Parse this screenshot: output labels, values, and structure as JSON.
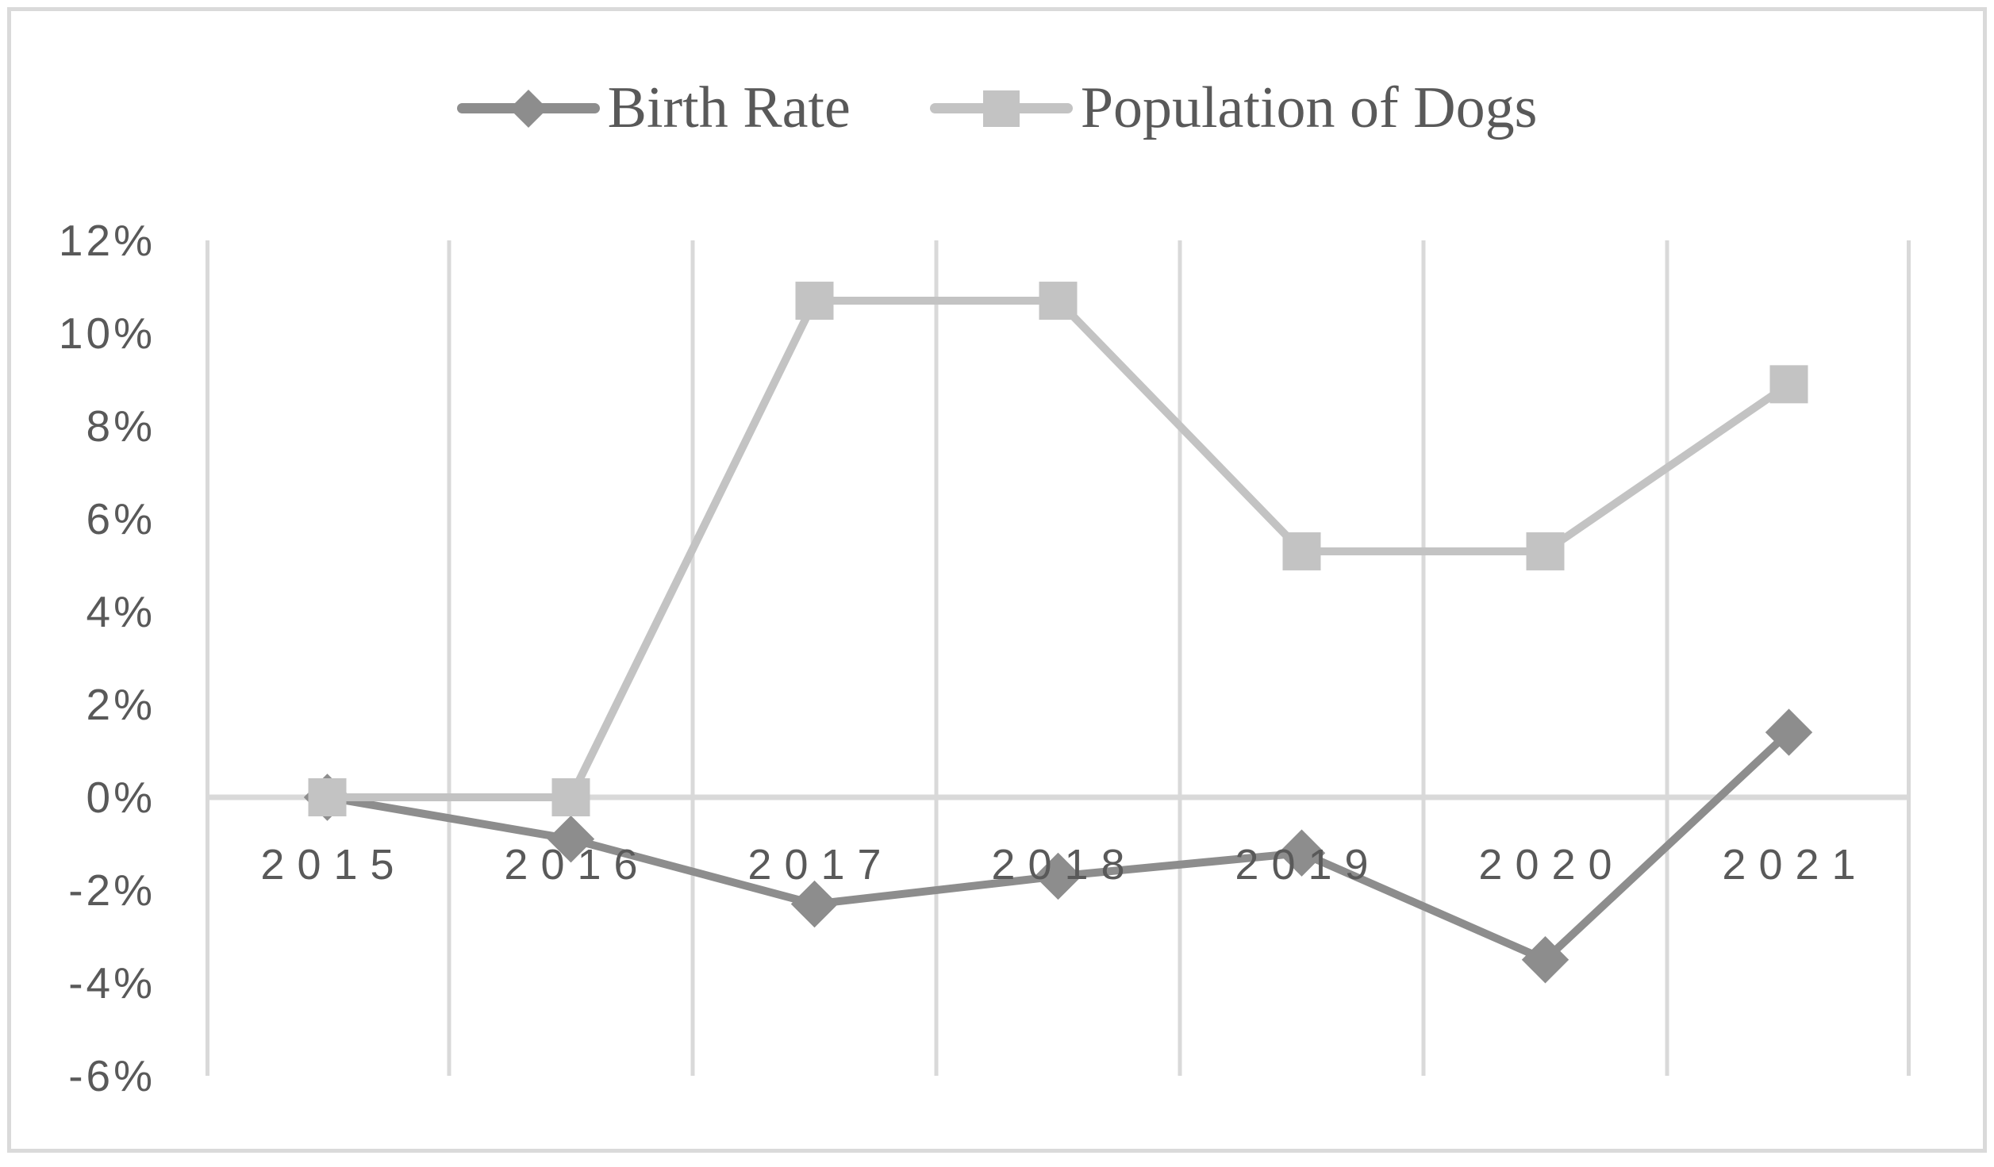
{
  "figure": {
    "background": "#ffffff",
    "border_color": "#dadada"
  },
  "chart_data": {
    "type": "line",
    "title": "",
    "categories": [
      "2015",
      "2016",
      "2017",
      "2018",
      "2019",
      "2020",
      "2021"
    ],
    "series": [
      {
        "name": "Birth Rate",
        "marker": "diamond",
        "color": "#8d8d8d",
        "values": [
          0.0,
          -0.9,
          -2.3,
          -1.7,
          -1.2,
          -3.5,
          1.4
        ]
      },
      {
        "name": "Population of Dogs",
        "marker": "square",
        "color": "#c3c3c3",
        "values": [
          0.0,
          0.0,
          10.7,
          10.7,
          5.3,
          5.3,
          8.9
        ]
      }
    ],
    "unit": "%",
    "ylim": [
      -6,
      12
    ],
    "y_tick_step": 2,
    "y_ticks": [
      {
        "label": "12%",
        "value": 12
      },
      {
        "label": "10%",
        "value": 10
      },
      {
        "label": "8%",
        "value": 8
      },
      {
        "label": "6%",
        "value": 6
      },
      {
        "label": "4%",
        "value": 4
      },
      {
        "label": "2%",
        "value": 2
      },
      {
        "label": "0%",
        "value": 0
      },
      {
        "label": "-2%",
        "value": -2
      },
      {
        "label": "-4%",
        "value": -4
      },
      {
        "label": "-6%",
        "value": -6
      }
    ],
    "grid": "vertical",
    "legend_position": "top",
    "colors": {
      "axis_text": "#595959",
      "gridline": "#d9d9d9",
      "zero_line": "#d9d9d9"
    }
  }
}
